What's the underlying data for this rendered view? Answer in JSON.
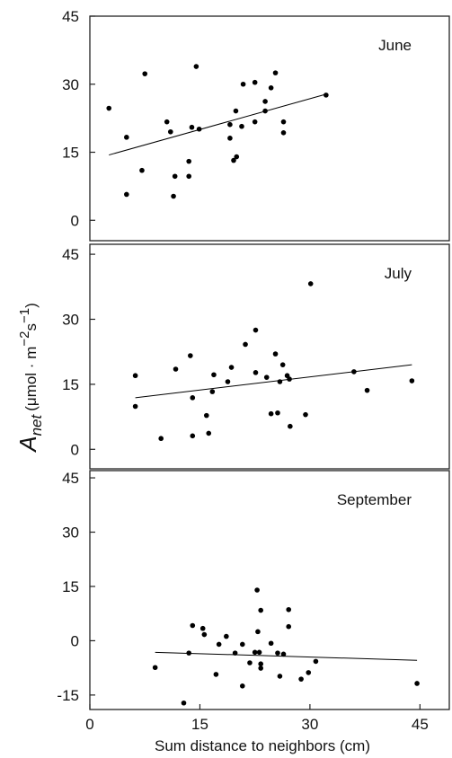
{
  "chart_data": [
    {
      "type": "scatter",
      "title": "June",
      "x": [
        2.6,
        5.0,
        5.0,
        7.1,
        7.5,
        10.5,
        11.0,
        11.6,
        11.4,
        13.5,
        13.5,
        13.9,
        14.5,
        14.9,
        19.1,
        19.1,
        19.6,
        20.0,
        19.9,
        20.7,
        20.9,
        22.5,
        22.5,
        23.9,
        23.9,
        24.7,
        25.3,
        26.4,
        26.4,
        32.2
      ],
      "values": [
        24.7,
        18.3,
        5.7,
        11.0,
        32.3,
        21.7,
        19.5,
        9.7,
        5.3,
        13.0,
        9.7,
        20.5,
        33.9,
        20.1,
        21.1,
        18.1,
        13.2,
        14.0,
        24.1,
        20.7,
        30.0,
        30.4,
        21.7,
        24.1,
        26.2,
        29.2,
        32.5,
        21.7,
        19.3,
        27.6
      ],
      "fit": {
        "x": [
          2.6,
          32.2
        ],
        "y": [
          14.4,
          27.8
        ]
      },
      "color": "#000000",
      "xlim": [
        0,
        49
      ],
      "ylim": [
        -4.5,
        45
      ],
      "yticks": [
        0,
        15,
        30,
        45
      ]
    },
    {
      "type": "scatter",
      "title": "July",
      "ylabel": {
        "main": "A",
        "sub": "net",
        "unit": "(μmol · m",
        "exp1": "−2",
        "s": "s",
        "exp2": "−1",
        "close": ")"
      },
      "x": [
        6.2,
        6.2,
        9.7,
        11.7,
        13.7,
        14.0,
        14.0,
        15.9,
        16.2,
        16.7,
        16.9,
        18.8,
        19.3,
        21.2,
        22.6,
        22.6,
        24.1,
        24.7,
        25.3,
        25.6,
        25.9,
        26.3,
        26.9,
        27.2,
        27.3,
        29.4,
        30.1,
        36.0,
        37.8,
        43.9
      ],
      "values": [
        17.0,
        9.9,
        2.5,
        18.5,
        21.6,
        11.9,
        3.1,
        7.8,
        3.7,
        13.3,
        17.2,
        15.6,
        18.9,
        24.2,
        27.5,
        17.7,
        16.6,
        8.2,
        22.0,
        8.4,
        15.6,
        19.5,
        17.0,
        16.2,
        5.3,
        8.0,
        38.2,
        17.9,
        13.6,
        15.8
      ],
      "fit": {
        "x": [
          6.2,
          43.9
        ],
        "y": [
          11.9,
          19.5
        ]
      },
      "color": "#000000",
      "xlim": [
        0,
        49
      ],
      "ylim": [
        -4.5,
        47.3
      ],
      "yticks": [
        0,
        15,
        30,
        45
      ]
    },
    {
      "type": "scatter",
      "title": "September",
      "xlabel": "Sum distance to neighbors (cm)",
      "x": [
        8.9,
        12.8,
        13.5,
        14.0,
        15.4,
        15.6,
        17.2,
        17.6,
        18.6,
        19.8,
        20.8,
        20.8,
        21.8,
        22.5,
        22.8,
        22.9,
        23.1,
        23.3,
        23.3,
        23.3,
        24.7,
        25.6,
        25.9,
        26.4,
        27.1,
        27.1,
        28.8,
        29.8,
        30.8,
        44.6
      ],
      "values": [
        -7.4,
        -17.2,
        -3.4,
        4.2,
        3.4,
        1.7,
        -9.3,
        -1.0,
        1.2,
        -3.4,
        -1.0,
        -12.5,
        -6.1,
        -3.2,
        14.0,
        2.5,
        -3.2,
        -6.4,
        -7.6,
        8.4,
        -0.7,
        -3.4,
        -9.8,
        -3.7,
        3.9,
        8.6,
        -10.6,
        -8.8,
        -5.7,
        -11.8
      ],
      "fit": {
        "x": [
          8.9,
          44.6
        ],
        "y": [
          -3.2,
          -5.4
        ]
      },
      "color": "#000000",
      "xlim": [
        0,
        49
      ],
      "ylim": [
        -19,
        47
      ],
      "yticks": [
        -15,
        0,
        15,
        30,
        45
      ],
      "xticks": [
        0,
        15,
        30,
        45
      ]
    }
  ]
}
